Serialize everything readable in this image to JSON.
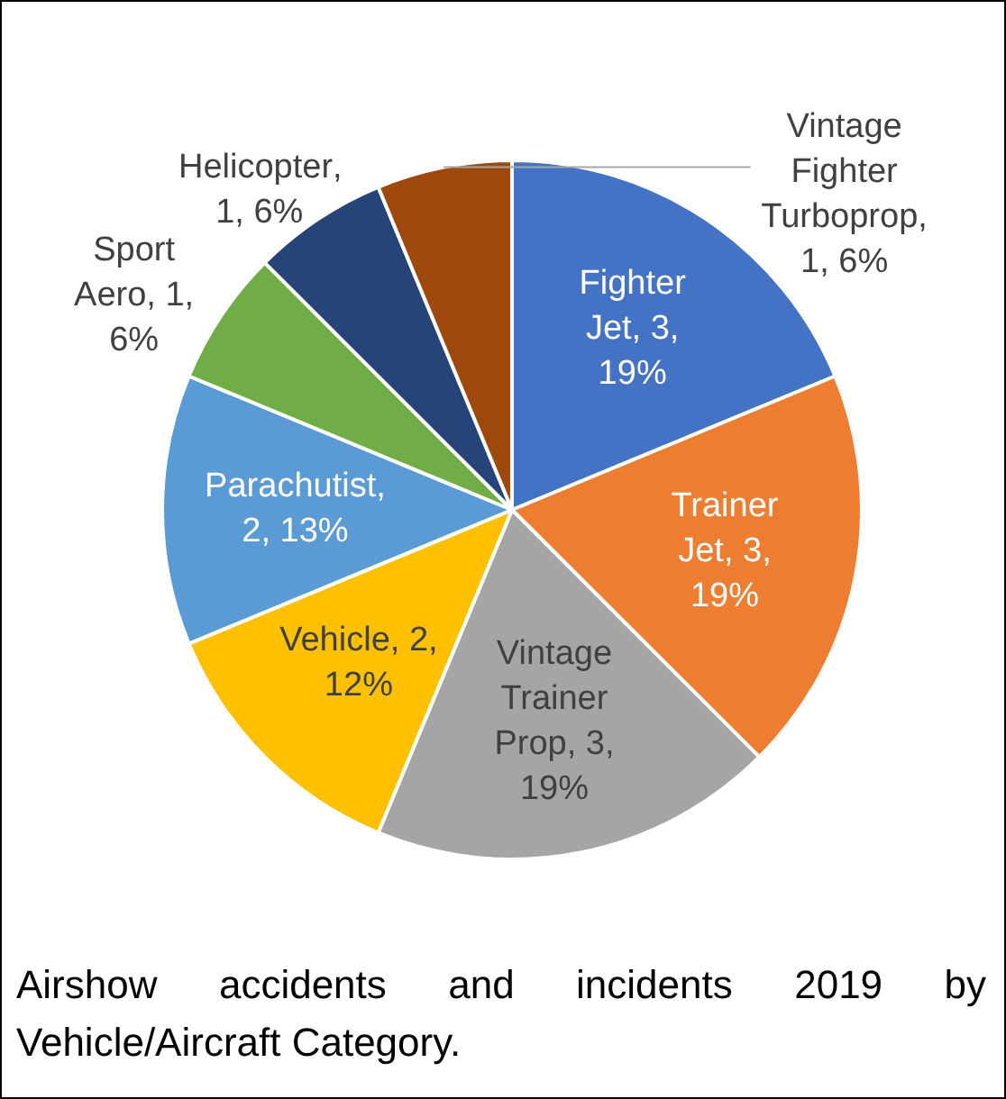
{
  "chart_data": {
    "type": "pie",
    "categories": [
      "Fighter Jet",
      "Trainer Jet",
      "Vintage Trainer Prop",
      "Vehicle",
      "Parachutist",
      "Sport Aero",
      "Helicopter",
      "Vintage Fighter Turboprop"
    ],
    "values": [
      3,
      3,
      3,
      2,
      2,
      1,
      1,
      1
    ],
    "value_labels": [
      ", 3, 19%",
      ", 3, 19%",
      ", 3, 19%",
      ", 2, 12%",
      ", 2, 13%",
      ", 1, 6%",
      ", 1, 6%",
      ", 1, 6%"
    ],
    "colors": [
      "#4472c4",
      "#ed7d31",
      "#a5a5a5",
      "#ffc000",
      "#5b9bd5",
      "#70ad47",
      "#264478",
      "#9e480e"
    ],
    "legend": false,
    "annotations": [
      "Airshow accidents and incidents 2019 by Vehicle/Aircraft Category."
    ]
  }
}
